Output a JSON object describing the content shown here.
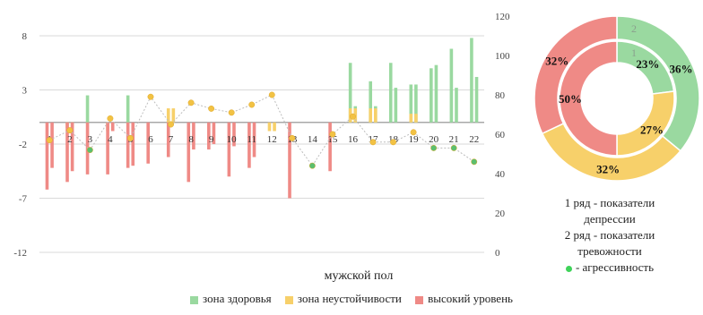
{
  "chart_data": [
    {
      "type": "bar",
      "xlabel": "мужской пол",
      "categories": [
        "1",
        "2",
        "3",
        "4",
        "5",
        "6",
        "7",
        "8",
        "9",
        "10",
        "11",
        "12",
        "13",
        "14",
        "15",
        "16",
        "17",
        "18",
        "19",
        "20",
        "21",
        "22"
      ],
      "yaxis_left": {
        "ticks": [
          8,
          3,
          -2,
          -7,
          -12
        ],
        "range": [
          -12,
          8
        ]
      },
      "yaxis_right": {
        "ticks": [
          0,
          20,
          40,
          60,
          80,
          100,
          120
        ],
        "range": [
          0,
          120
        ]
      },
      "series": [
        {
          "name": "зона здоровья",
          "color": "#9ad9a0",
          "values": [
            [
              0,
              0
            ],
            [
              0,
              0
            ],
            [
              2.5,
              0
            ],
            [
              0,
              0
            ],
            [
              2.5,
              0
            ],
            [
              0,
              0
            ],
            [
              0,
              0
            ],
            [
              0,
              0
            ],
            [
              0,
              0
            ],
            [
              0,
              0
            ],
            [
              0,
              0
            ],
            [
              0,
              0
            ],
            [
              0,
              0
            ],
            [
              0,
              0
            ],
            [
              0,
              0
            ],
            [
              5.5,
              1.5
            ],
            [
              3.8,
              1.5
            ],
            [
              5.5,
              3.2
            ],
            [
              3.5,
              3.5
            ],
            [
              5,
              5.3
            ],
            [
              6.8,
              3.2
            ],
            [
              7.8,
              4.2
            ]
          ]
        },
        {
          "name": "зона неустойчивости",
          "color": "#f7d06a",
          "values": [
            [
              0,
              0
            ],
            [
              -0.5,
              -0.5
            ],
            [
              0,
              0
            ],
            [
              -0.8,
              -0.8
            ],
            [
              0,
              0
            ],
            [
              0,
              0
            ],
            [
              1.3,
              1.3
            ],
            [
              0,
              0
            ],
            [
              0,
              0
            ],
            [
              0,
              0
            ],
            [
              0,
              0
            ],
            [
              -0.8,
              -0.8
            ],
            [
              0,
              0
            ],
            [
              0,
              0
            ],
            [
              0,
              0
            ],
            [
              1.3,
              1.3
            ],
            [
              1.3,
              1.3
            ],
            [
              0,
              0
            ],
            [
              0.8,
              0.8
            ],
            [
              0,
              0
            ],
            [
              0,
              0
            ],
            [
              0,
              0
            ]
          ]
        },
        {
          "name": "высокий уровень",
          "color": "#ef8a86",
          "values": [
            [
              -6.2,
              -4.2
            ],
            [
              -5.5,
              -4.5
            ],
            [
              -4.8,
              0
            ],
            [
              -4.8,
              -0.8
            ],
            [
              -4.2,
              -4
            ],
            [
              -3.8,
              0
            ],
            [
              -3.2,
              0
            ],
            [
              -5.5,
              -2.5
            ],
            [
              -2.5,
              -2
            ],
            [
              -5,
              -2.2
            ],
            [
              -4.2,
              -3.2
            ],
            [
              0,
              0
            ],
            [
              -7,
              0
            ],
            [
              0,
              0
            ],
            [
              -4.5,
              0
            ],
            [
              0,
              0
            ],
            [
              0,
              0
            ],
            [
              0,
              0
            ],
            [
              0,
              0
            ],
            [
              0,
              0
            ],
            [
              0,
              0
            ],
            [
              0,
              0
            ]
          ]
        },
        {
          "name": "агрессивность",
          "color": "#5bbf6f",
          "type": "line",
          "values": [
            57,
            62,
            52,
            68,
            58,
            79,
            65,
            76,
            73,
            71,
            75,
            80,
            58,
            44,
            60,
            69,
            56,
            56,
            61,
            53,
            53,
            46
          ]
        }
      ],
      "data_labels": [
        "1",
        "2",
        "3",
        "4",
        "5",
        "6",
        "7",
        "8",
        "9",
        "10",
        "11",
        "12",
        "13",
        "14",
        "15",
        "16",
        "17",
        "18",
        "19",
        "20",
        "21",
        "22"
      ]
    },
    {
      "type": "pie",
      "rings": [
        {
          "name": "1",
          "values": [
            {
              "label": "23%",
              "value": 23,
              "color": "#9ad9a0"
            },
            {
              "label": "27%",
              "value": 27,
              "color": "#f7d06a"
            },
            {
              "label": "50%",
              "value": 50,
              "color": "#ef8a86"
            }
          ]
        },
        {
          "name": "2",
          "values": [
            {
              "label": "36%",
              "value": 36,
              "color": "#9ad9a0"
            },
            {
              "label": "32%",
              "value": 32,
              "color": "#f7d06a"
            },
            {
              "label": "32%",
              "value": 32,
              "color": "#ef8a86"
            }
          ]
        }
      ],
      "ring_labels": [
        "1",
        "2"
      ]
    }
  ],
  "legend": {
    "items": [
      {
        "label": "зона здоровья",
        "color": "#9ad9a0"
      },
      {
        "label": "зона неустойчивости",
        "color": "#f7d06a"
      },
      {
        "label": "высокий уровень",
        "color": "#ef8a86"
      }
    ]
  },
  "notes": {
    "line1a": "1 ряд - показатели",
    "line1b": "депрессии",
    "line2a": "2 ряд - показатели",
    "line2b": "тревожности",
    "line3": "- агрессивность",
    "green_color": "#3fd35a"
  }
}
